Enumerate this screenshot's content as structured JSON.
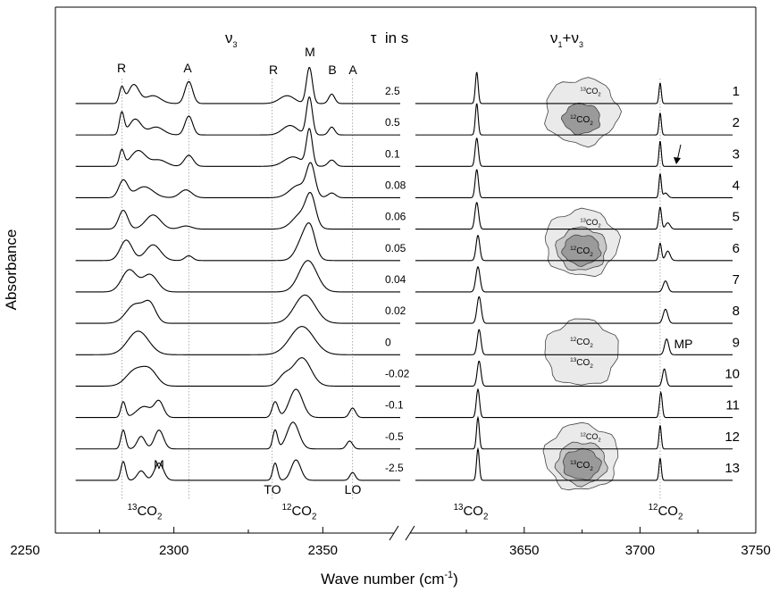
{
  "chart_data": {
    "type": "line",
    "bands": {
      "nu3": {
        "base": "ν",
        "sub": "3"
      },
      "tau": "τ  in s",
      "combination": {
        "base1": "ν",
        "sub1": "1",
        "plus": "+",
        "base2": "ν",
        "sub2": "3"
      }
    },
    "ylabel": "Absorbance",
    "xlabel": {
      "text": "Wave number (cm",
      "sup": "-1",
      "end": ")"
    },
    "ylim": [
      -1.68,
      15.07
    ],
    "segments": [
      {
        "xlim": [
          2250,
          2376
        ],
        "xticks": [
          2250,
          2300,
          2350
        ],
        "xminorticks": [
          2275,
          2325
        ],
        "data_range": [
          2267,
          2376
        ]
      },
      {
        "xlim": [
          3603,
          3750
        ],
        "xticks": [
          3650,
          3700,
          3750
        ],
        "xminorticks": [
          3625,
          3675,
          3725
        ],
        "data_range": [
          3603,
          3740
        ]
      }
    ],
    "guides": [
      2282.6,
      2305,
      2333,
      2360,
      3708.7
    ],
    "color": "#000000",
    "series": [
      {
        "name": "1",
        "tau": 2.5,
        "peaks": [
          [
            2282.5,
            0.5,
            0.8
          ],
          [
            2286.5,
            0.6,
            1.8
          ],
          [
            2293,
            0.25,
            2.5
          ],
          [
            2305,
            0.7,
            1.3
          ],
          [
            2338,
            0.25,
            2.5
          ],
          [
            2345.5,
            1.15,
            1.0
          ],
          [
            2353,
            0.3,
            1.0
          ],
          [
            3629.5,
            1.0,
            0.6
          ],
          [
            3708.7,
            0.65,
            0.5
          ]
        ]
      },
      {
        "name": "2",
        "tau": 0.5,
        "peaks": [
          [
            2282.5,
            0.7,
            0.8
          ],
          [
            2287,
            0.5,
            2
          ],
          [
            2294,
            0.25,
            2.5
          ],
          [
            2305,
            0.6,
            1.3
          ],
          [
            2339,
            0.3,
            2.5
          ],
          [
            2345.5,
            1.2,
            1.0
          ],
          [
            2353,
            0.25,
            1.0
          ],
          [
            3629.5,
            1.0,
            0.6
          ],
          [
            3708.7,
            0.7,
            0.5
          ]
        ]
      },
      {
        "name": "3",
        "tau": 0.1,
        "peaks": [
          [
            2282.5,
            0.5,
            0.8
          ],
          [
            2288,
            0.5,
            2.5
          ],
          [
            2295,
            0.2,
            2.5
          ],
          [
            2305,
            0.35,
            1.5
          ],
          [
            2340,
            0.3,
            3
          ],
          [
            2345.5,
            1.15,
            1.0
          ],
          [
            2353,
            0.2,
            1.2
          ],
          [
            3629.5,
            0.9,
            0.7
          ],
          [
            3708.7,
            0.8,
            0.5
          ]
        ]
      },
      {
        "name": "4",
        "tau": 0.08,
        "peaks": [
          [
            2283,
            0.55,
            1.5
          ],
          [
            2290,
            0.35,
            3
          ],
          [
            2304,
            0.25,
            2
          ],
          [
            2342,
            0.4,
            3
          ],
          [
            2346,
            0.95,
            1.4
          ],
          [
            2353,
            0.15,
            1.3
          ],
          [
            3629.5,
            0.9,
            0.7
          ],
          [
            3708.7,
            0.75,
            0.5
          ],
          [
            3711,
            0.15,
            1
          ]
        ]
      },
      {
        "name": "5",
        "tau": 0.06,
        "peaks": [
          [
            2283,
            0.6,
            1.5
          ],
          [
            2293,
            0.45,
            2.5
          ],
          [
            2304,
            0.1,
            2
          ],
          [
            2343,
            0.5,
            3
          ],
          [
            2346,
            0.85,
            1.6
          ],
          [
            3629.5,
            0.85,
            0.8
          ],
          [
            3708.7,
            0.7,
            0.6
          ],
          [
            3712,
            0.2,
            1
          ]
        ]
      },
      {
        "name": "6",
        "tau": 0.05,
        "peaks": [
          [
            2284,
            0.65,
            2
          ],
          [
            2293,
            0.5,
            2.5
          ],
          [
            2305,
            0.15,
            1.3
          ],
          [
            2344,
            0.8,
            2.5
          ],
          [
            2346,
            0.55,
            1.6
          ],
          [
            3630,
            0.8,
            0.8
          ],
          [
            3708.7,
            0.55,
            0.6
          ],
          [
            3712,
            0.3,
            1
          ]
        ]
      },
      {
        "name": "7",
        "tau": 0.04,
        "peaks": [
          [
            2285,
            0.7,
            2.5
          ],
          [
            2292,
            0.55,
            2.5
          ],
          [
            2345,
            1.0,
            3
          ],
          [
            3630,
            0.8,
            0.9
          ],
          [
            3711,
            0.35,
            1
          ]
        ]
      },
      {
        "name": "8",
        "tau": 0.02,
        "peaks": [
          [
            2287,
            0.6,
            3
          ],
          [
            2292,
            0.55,
            2
          ],
          [
            2344,
            0.9,
            3.5
          ],
          [
            3630.5,
            0.85,
            0.9
          ],
          [
            3711,
            0.45,
            1
          ]
        ]
      },
      {
        "name": "9",
        "tau": 0,
        "peaks": [
          [
            2288,
            0.75,
            3.5
          ],
          [
            2343,
            0.9,
            4
          ],
          [
            3630.5,
            0.8,
            0.8
          ],
          [
            3711.5,
            0.5,
            0.9
          ]
        ]
      },
      {
        "name": "10",
        "tau": -0.02,
        "peaks": [
          [
            2287,
            0.5,
            3
          ],
          [
            2292,
            0.45,
            2.5
          ],
          [
            2337,
            0.3,
            2
          ],
          [
            2343,
            0.9,
            3
          ],
          [
            3630.5,
            0.8,
            0.8
          ],
          [
            3710.5,
            0.55,
            0.8
          ]
        ]
      },
      {
        "name": "11",
        "tau": -0.1,
        "peaks": [
          [
            2283,
            0.5,
            0.8
          ],
          [
            2290,
            0.35,
            2.5
          ],
          [
            2295,
            0.5,
            1.5
          ],
          [
            2334,
            0.5,
            1
          ],
          [
            2341,
            0.9,
            2.2
          ],
          [
            2360,
            0.3,
            1
          ],
          [
            3630,
            0.9,
            0.7
          ],
          [
            3709,
            0.8,
            0.6
          ]
        ]
      },
      {
        "name": "12",
        "tau": -0.5,
        "peaks": [
          [
            2283,
            0.6,
            0.8
          ],
          [
            2289,
            0.4,
            1.3
          ],
          [
            2295,
            0.6,
            1.5
          ],
          [
            2334,
            0.6,
            0.8
          ],
          [
            2340,
            0.85,
            2
          ],
          [
            2359,
            0.25,
            1
          ],
          [
            3630,
            1.0,
            0.6
          ],
          [
            3708.7,
            0.75,
            0.5
          ]
        ]
      },
      {
        "name": "13",
        "tau": -2.5,
        "peaks": [
          [
            2283,
            0.6,
            0.8
          ],
          [
            2289,
            0.3,
            1.3
          ],
          [
            2295,
            0.55,
            1.5
          ],
          [
            2334,
            0.55,
            0.8
          ],
          [
            2341,
            0.65,
            1.6
          ],
          [
            2360,
            0.25,
            0.9
          ],
          [
            3630,
            1.0,
            0.6
          ],
          [
            3708.7,
            0.7,
            0.5
          ]
        ]
      }
    ],
    "annotations": [
      "R",
      "A",
      "R",
      "M",
      "B",
      "A",
      "M",
      "TO",
      "LO",
      "MP"
    ],
    "species": [
      {
        "sup": "13",
        "main": "CO",
        "sub": "2"
      },
      {
        "sup": "12",
        "main": "CO",
        "sub": "2"
      },
      {
        "sup": "13",
        "main": "CO",
        "sub": "2"
      },
      {
        "sup": "12",
        "main": "CO",
        "sub": "2"
      }
    ],
    "insets": [
      {
        "labels": [
          {
            "sup": "13",
            "main": "CO",
            "sub": "2"
          },
          {
            "sup": "12",
            "main": "CO",
            "sub": "2"
          }
        ]
      },
      {
        "labels": [
          {
            "sup": "13",
            "main": "CO",
            "sub": "2"
          },
          {
            "sup": "12",
            "main": "CO",
            "sub": "2"
          }
        ]
      },
      {
        "labels": [
          {
            "sup": "12",
            "main": "CO",
            "sub": "2"
          },
          {
            "sup": "13",
            "main": "CO",
            "sub": "2"
          }
        ]
      },
      {
        "labels": [
          {
            "sup": "12",
            "main": "CO",
            "sub": "2"
          },
          {
            "sup": "13",
            "main": "CO",
            "sub": "2"
          }
        ]
      }
    ]
  }
}
